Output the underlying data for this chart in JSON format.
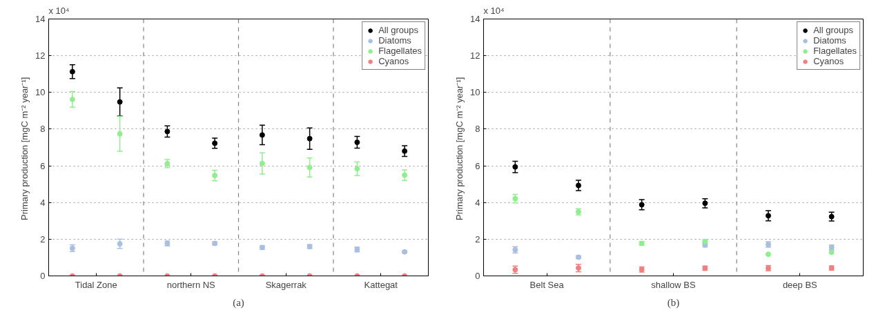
{
  "chart_data": [
    {
      "type": "scatter",
      "ylabel": "Primary production  [mgC m⁻² year⁻¹]",
      "annotations": [
        "x 10⁴",
        "Tidal Zone",
        "northern NS",
        "Skagerrak",
        "Kattegat",
        "(a)"
      ],
      "categories": [
        null,
        null,
        null,
        null,
        null,
        null,
        null,
        null
      ],
      "ylim": [
        0,
        14
      ],
      "yticks": [
        0,
        2,
        4,
        6,
        8,
        10,
        12,
        14
      ],
      "grid": "y",
      "legend": "top right",
      "marker": "circle",
      "series": [
        {
          "name": "All groups",
          "color": "#000000",
          "values": [
            11.13,
            9.48,
            7.87,
            7.23,
            7.68,
            7.48,
            7.28,
            6.8
          ],
          "errors": [
            0.38,
            0.77,
            0.31,
            0.28,
            0.53,
            0.58,
            0.32,
            0.29
          ]
        },
        {
          "name": "Diatoms",
          "color": "#a9bfe0",
          "values": [
            1.51,
            1.75,
            1.77,
            1.77,
            1.55,
            1.6,
            1.44,
            1.31
          ],
          "errors": [
            0.18,
            0.25,
            0.13,
            0.08,
            0.1,
            0.1,
            0.13,
            0.06
          ]
        },
        {
          "name": "Flagellates",
          "color": "#90ee90",
          "values": [
            9.62,
            7.74,
            6.12,
            5.47,
            6.13,
            5.91,
            5.84,
            5.49
          ],
          "errors": [
            0.43,
            0.95,
            0.22,
            0.29,
            0.58,
            0.52,
            0.37,
            0.29
          ]
        },
        {
          "name": "Cyanos",
          "color": "#f08080",
          "values": [
            0,
            0,
            0,
            0,
            0,
            0,
            0,
            0
          ]
        }
      ]
    },
    {
      "type": "scatter",
      "ylabel": "Primary production  [mgC m⁻² year⁻¹]",
      "annotations": [
        "x 10⁴",
        "Belt Sea",
        "shallow BS",
        "deep BS",
        "(b)"
      ],
      "categories": [
        null,
        null,
        null,
        null,
        null,
        null
      ],
      "ylim": [
        0,
        14
      ],
      "yticks": [
        0,
        2,
        4,
        6,
        8,
        10,
        12,
        14
      ],
      "grid": "y",
      "legend": "top right",
      "marker": "circle",
      "series": [
        {
          "name": "All groups",
          "color": "#000000",
          "values": [
            5.94,
            4.93,
            3.88,
            3.96,
            3.28,
            3.23
          ],
          "errors": [
            0.31,
            0.28,
            0.28,
            0.25,
            0.28,
            0.24
          ]
        },
        {
          "name": "Diatoms",
          "color": "#a9bfe0",
          "values": [
            1.42,
            1.02,
            null,
            1.68,
            1.71,
            1.55
          ],
          "errors": [
            0.17,
            0.07,
            null,
            0.1,
            0.15,
            0.13
          ]
        },
        {
          "name": "Flagellates",
          "color": "#90ee90",
          "values": [
            4.21,
            3.49,
            1.77,
            1.88,
            1.18,
            1.29
          ],
          "errors": [
            0.23,
            0.17,
            0.1,
            0.1,
            null,
            null
          ]
        },
        {
          "name": "Cyanos",
          "color": "#f08080",
          "values": [
            0.34,
            0.43,
            0.35,
            0.42,
            0.42,
            0.43
          ],
          "errors": [
            0.2,
            0.2,
            0.14,
            0.12,
            0.14,
            0.12
          ]
        }
      ]
    }
  ]
}
